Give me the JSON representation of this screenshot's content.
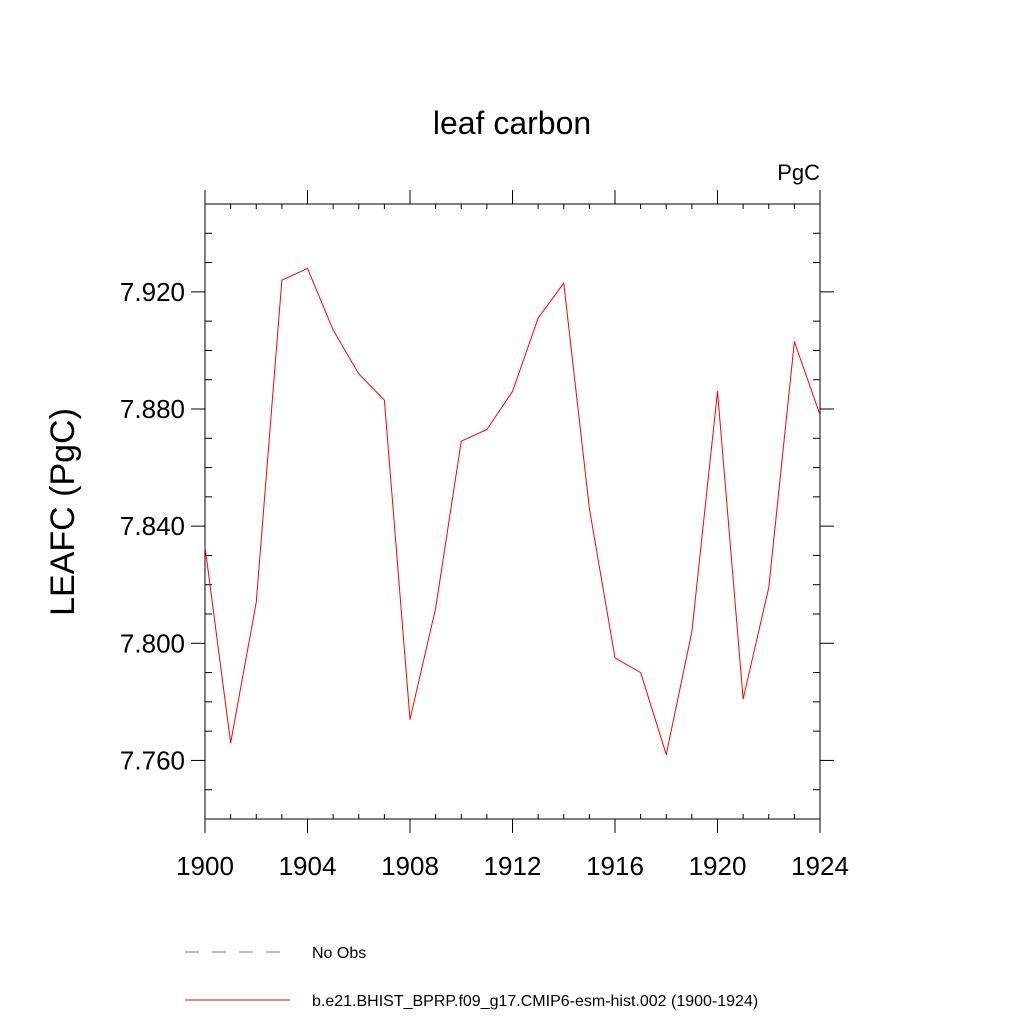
{
  "chart_data": {
    "type": "line",
    "title": "leaf carbon",
    "units_label": "PgC",
    "ylabel": "LEAFC  (PgC)",
    "xlabel": "",
    "xlim": [
      1900,
      1924
    ],
    "ylim": [
      7.74,
      7.95
    ],
    "x_ticks": [
      1900,
      1904,
      1908,
      1912,
      1916,
      1920,
      1924
    ],
    "x_tick_labels": [
      "1900",
      "1904",
      "1908",
      "1912",
      "1916",
      "1920",
      "1924"
    ],
    "y_ticks": [
      7.76,
      7.8,
      7.84,
      7.88,
      7.92
    ],
    "y_tick_labels": [
      "7.760",
      "7.800",
      "7.840",
      "7.880",
      "7.920"
    ],
    "grid": false,
    "legend_position": "bottom",
    "series": [
      {
        "name": "b.e21.BHIST_BPRP.f09_g17.CMIP6-esm-hist.002 (1900-1924)",
        "color": "#ff0000",
        "style": "solid",
        "x": [
          1900,
          1901,
          1902,
          1903,
          1904,
          1905,
          1906,
          1907,
          1908,
          1909,
          1910,
          1911,
          1912,
          1913,
          1914,
          1915,
          1916,
          1917,
          1918,
          1919,
          1920,
          1921,
          1922,
          1923,
          1924
        ],
        "y": [
          7.833,
          7.766,
          7.814,
          7.924,
          7.928,
          7.907,
          7.892,
          7.883,
          7.774,
          7.812,
          7.869,
          7.873,
          7.886,
          7.911,
          7.923,
          7.846,
          7.795,
          7.79,
          7.762,
          7.804,
          7.886,
          7.781,
          7.819,
          7.903,
          7.878
        ]
      }
    ],
    "legend": [
      {
        "label": "No Obs",
        "color": "#6f6fbf",
        "style": "dashed"
      },
      {
        "label": "b.e21.BHIST_BPRP.f09_g17.CMIP6-esm-hist.002 (1900-1924)",
        "color": "#ff0000",
        "style": "solid"
      }
    ]
  }
}
